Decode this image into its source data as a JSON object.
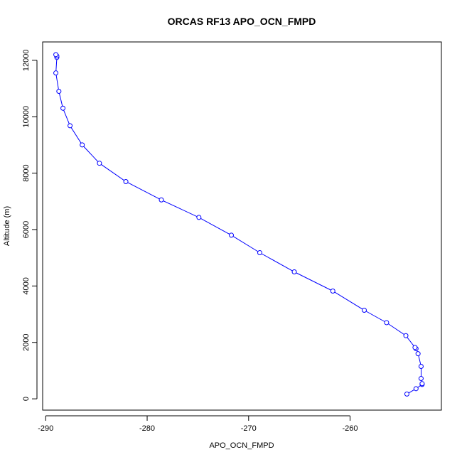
{
  "chart_data": {
    "type": "line",
    "title": "ORCAS RF13 APO_OCN_FMPD",
    "xlabel": "APO_OCN_FMPD",
    "ylabel": "Altitude (m)",
    "xlim": [
      -290.3,
      -251.0
    ],
    "ylim": [
      -400,
      12650
    ],
    "xticks": [
      -290,
      -280,
      -270,
      -260
    ],
    "yticks": [
      0,
      2000,
      4000,
      6000,
      8000,
      10000,
      12000
    ],
    "xtick_labels": [
      "-290",
      "-280",
      "-270",
      "-260"
    ],
    "ytick_labels": [
      "0",
      "2000",
      "4000",
      "6000",
      "8000",
      "10000",
      "12000"
    ],
    "grid": false,
    "series": [
      {
        "color": "#0000ff",
        "marker": "open-circle",
        "x": [
          -254.4,
          -253.5,
          -252.9,
          -252.9,
          -253.0,
          -253.0,
          -253.3,
          -253.5,
          -253.6,
          -254.5,
          -256.4,
          -258.6,
          -261.7,
          -265.5,
          -268.9,
          -271.7,
          -274.9,
          -278.6,
          -282.1,
          -284.7,
          -286.4,
          -287.6,
          -288.3,
          -288.7,
          -289.0,
          -288.9,
          -288.9,
          -289.0
        ],
        "y": [
          170,
          360,
          510,
          540,
          720,
          1150,
          1600,
          1780,
          1820,
          2240,
          2700,
          3140,
          3820,
          4500,
          5180,
          5800,
          6430,
          7050,
          7700,
          8350,
          9000,
          9680,
          10300,
          10900,
          11550,
          12100,
          12150,
          12200
        ]
      }
    ]
  }
}
